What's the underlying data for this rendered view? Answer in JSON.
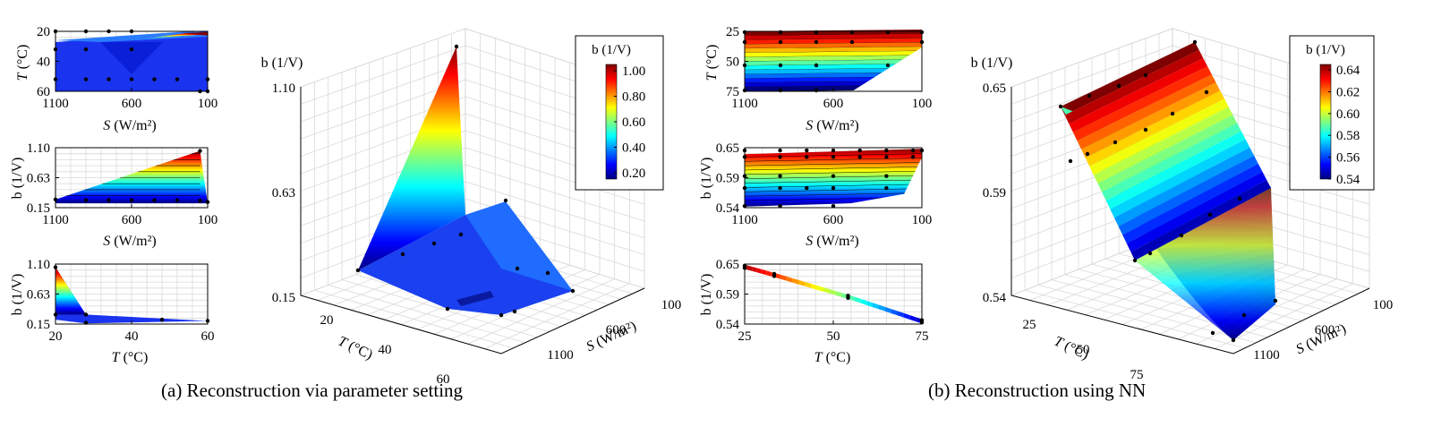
{
  "caption_a": "(a) Reconstruction via parameter setting",
  "caption_b": "(b) Reconstruction using NN",
  "colors": {
    "colormap": [
      "#00007f",
      "#0000ff",
      "#007fff",
      "#00ffff",
      "#7fff7f",
      "#ffff00",
      "#ff7f00",
      "#ff0000",
      "#7f0000"
    ],
    "axis": "#000000",
    "grid": "#d9d9d9",
    "marker": "#000000"
  },
  "chart_data": [
    {
      "id": "a-small-TS",
      "type": "heatmap",
      "xlabel_var": "S",
      "xlabel_unit": "(W/m²)",
      "ylabel_var": "T",
      "ylabel_unit": "(°C)",
      "xticks": [
        "1100",
        "600",
        "100"
      ],
      "xlim": [
        1100,
        100
      ],
      "yticks": [
        "20",
        "40",
        "60"
      ],
      "ylim": [
        15,
        65
      ],
      "points": [
        [
          1100,
          25
        ],
        [
          900,
          25
        ],
        [
          750,
          25
        ],
        [
          600,
          25
        ],
        [
          450,
          25
        ],
        [
          300,
          25
        ],
        [
          150,
          15
        ],
        [
          100,
          15
        ],
        [
          1100,
          50
        ],
        [
          900,
          50
        ],
        [
          600,
          50
        ],
        [
          1100,
          65
        ],
        [
          900,
          65
        ],
        [
          750,
          65
        ],
        [
          600,
          65
        ],
        [
          100,
          25
        ]
      ],
      "color_range": [
        0.15,
        1.1
      ]
    },
    {
      "id": "a-small-bS",
      "type": "area",
      "xlabel_var": "S",
      "xlabel_unit": "(W/m²)",
      "ylabel": "b (1/V)",
      "xticks": [
        "1100",
        "600",
        "100"
      ],
      "xlim": [
        1100,
        100
      ],
      "yticks": [
        "0.15",
        "0.63",
        "1.10"
      ],
      "ylim": [
        0.15,
        1.1
      ],
      "upper": {
        "S": [
          1100,
          150,
          100
        ],
        "b": [
          0.28,
          1.05,
          0.22
        ]
      },
      "lower": {
        "S": [
          1100,
          100
        ],
        "b": [
          0.22,
          0.22
        ]
      },
      "points": [
        [
          1100,
          0.28
        ],
        [
          900,
          0.27
        ],
        [
          750,
          0.27
        ],
        [
          600,
          0.27
        ],
        [
          450,
          0.27
        ],
        [
          300,
          0.27
        ],
        [
          150,
          0.26
        ],
        [
          150,
          1.05
        ],
        [
          100,
          0.24
        ]
      ]
    },
    {
      "id": "a-small-bT",
      "type": "area",
      "xlabel_var": "T",
      "xlabel_unit": "(°C)",
      "ylabel": "b (1/V)",
      "xticks": [
        "20",
        "40",
        "60"
      ],
      "xlim": [
        15,
        65
      ],
      "yticks": [
        "0.15",
        "0.63",
        "1.10"
      ],
      "ylim": [
        0.15,
        1.1
      ],
      "upper": {
        "T": [
          15,
          25,
          65
        ],
        "b": [
          1.05,
          0.3,
          0.2
        ]
      },
      "lower": {
        "T": [
          15,
          25,
          65
        ],
        "b": [
          0.22,
          0.16,
          0.2
        ]
      },
      "points": [
        [
          15,
          1.05
        ],
        [
          15,
          0.3
        ],
        [
          25,
          0.3
        ],
        [
          25,
          0.17
        ],
        [
          50,
          0.22
        ],
        [
          65,
          0.2
        ]
      ]
    },
    {
      "id": "a-3d",
      "type": "surface",
      "zlabel": "b (1/V)",
      "xlabel_var": "T",
      "xlabel_unit": "(°C)",
      "ylabel_var": "S",
      "ylabel_unit": "(W/m²)",
      "zticks": [
        "0.15",
        "0.63",
        "1.10"
      ],
      "xticks": [
        "20",
        "40",
        "60"
      ],
      "yticks": [
        "100",
        "600",
        "1100"
      ],
      "colorbar": {
        "title": "b (1/V)",
        "ticks": [
          "0.20",
          "0.40",
          "0.60",
          "0.80",
          "1.00"
        ],
        "range": [
          0.15,
          1.05
        ]
      },
      "peak": {
        "T": 15,
        "S": 100,
        "b": 1.05
      }
    },
    {
      "id": "b-small-TS",
      "type": "heatmap",
      "xlabel_var": "S",
      "xlabel_unit": "(W/m²)",
      "ylabel_var": "T",
      "ylabel_unit": "(°C)",
      "xticks": [
        "1100",
        "600",
        "100"
      ],
      "xlim": [
        1100,
        100
      ],
      "yticks": [
        "25",
        "50",
        "75"
      ],
      "ylim": [
        15,
        75
      ],
      "color_range": [
        0.54,
        0.65
      ]
    },
    {
      "id": "b-small-bS",
      "type": "area",
      "xlabel_var": "S",
      "xlabel_unit": "(W/m²)",
      "ylabel": "b (1/V)",
      "xticks": [
        "1100",
        "600",
        "100"
      ],
      "xlim": [
        1100,
        100
      ],
      "yticks": [
        "0.54",
        "0.59",
        "0.65"
      ],
      "ylim": [
        0.54,
        0.65
      ],
      "upper": {
        "S": [
          1100,
          100
        ],
        "b": [
          0.638,
          0.648
        ]
      },
      "lower": {
        "S": [
          1100,
          500,
          200,
          100
        ],
        "b": [
          0.542,
          0.548,
          0.565,
          0.632
        ]
      }
    },
    {
      "id": "b-small-bT",
      "type": "line",
      "xlabel_var": "T",
      "xlabel_unit": "(°C)",
      "ylabel": "b (1/V)",
      "xticks": [
        "25",
        "50",
        "75"
      ],
      "xlim": [
        15,
        75
      ],
      "yticks": [
        "0.54",
        "0.59",
        "0.65"
      ],
      "ylim": [
        0.54,
        0.65
      ],
      "x": [
        15,
        25,
        50,
        75
      ],
      "y": [
        0.645,
        0.63,
        0.59,
        0.545
      ]
    },
    {
      "id": "b-3d",
      "type": "surface",
      "zlabel": "b (1/V)",
      "xlabel_var": "T",
      "xlabel_unit": "(°C)",
      "ylabel_var": "S",
      "ylabel_unit": "(W/m²)",
      "zticks": [
        "0.54",
        "0.59",
        "0.65"
      ],
      "xticks": [
        "25",
        "50",
        "75"
      ],
      "yticks": [
        "100",
        "600",
        "1100"
      ],
      "colorbar": {
        "title": "b (1/V)",
        "ticks": [
          "0.54",
          "0.56",
          "0.58",
          "0.60",
          "0.62",
          "0.64"
        ],
        "range": [
          0.54,
          0.645
        ]
      }
    }
  ]
}
